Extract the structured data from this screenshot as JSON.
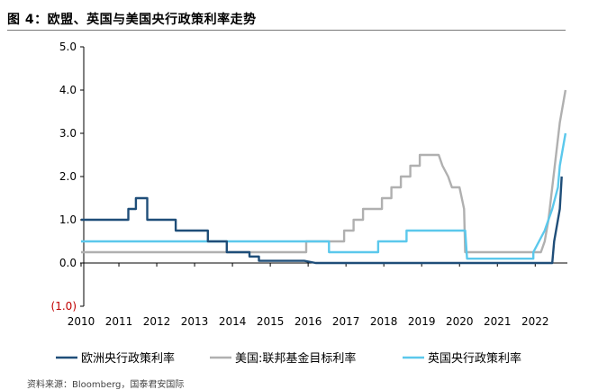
{
  "figure": {
    "title": "图 4：欧盟、英国与美国央行政策利率走势",
    "source_note": "资料来源：Bloomberg，国泰君安国际"
  },
  "chart_data": {
    "type": "line",
    "title": "",
    "xlabel": "",
    "ylabel": "",
    "xlim": [
      2010,
      2022.85
    ],
    "ylim": [
      -1.0,
      5.0
    ],
    "x_ticks": [
      2010,
      2011,
      2012,
      2013,
      2014,
      2015,
      2016,
      2017,
      2018,
      2019,
      2020,
      2021,
      2022
    ],
    "x_tick_labels": [
      "2010",
      "2011",
      "2012",
      "2013",
      "2014",
      "2015",
      "2016",
      "2017",
      "2018",
      "2019",
      "2020",
      "2021",
      "2022"
    ],
    "y_ticks": [
      -1.0,
      0.0,
      1.0,
      2.0,
      3.0,
      4.0,
      5.0
    ],
    "y_tick_labels": [
      "(1.0)",
      "0.0",
      "1.0",
      "2.0",
      "3.0",
      "4.0",
      "5.0"
    ],
    "y_tick_label_colors": {
      "(1.0)": "#c00000"
    },
    "grid": false,
    "legend_position": "bottom",
    "series": [
      {
        "name": "欧洲央行政策利率",
        "color": "#1f4e79",
        "points": [
          [
            2010.0,
            1.0
          ],
          [
            2011.0,
            1.0
          ],
          [
            2011.25,
            1.0
          ],
          [
            2011.25,
            1.25
          ],
          [
            2011.45,
            1.25
          ],
          [
            2011.45,
            1.5
          ],
          [
            2011.75,
            1.5
          ],
          [
            2011.75,
            1.0
          ],
          [
            2012.25,
            1.0
          ],
          [
            2012.5,
            1.0
          ],
          [
            2012.5,
            0.75
          ],
          [
            2013.1,
            0.75
          ],
          [
            2013.35,
            0.75
          ],
          [
            2013.35,
            0.5
          ],
          [
            2013.85,
            0.5
          ],
          [
            2013.85,
            0.25
          ],
          [
            2014.45,
            0.25
          ],
          [
            2014.45,
            0.15
          ],
          [
            2014.7,
            0.15
          ],
          [
            2014.7,
            0.05
          ],
          [
            2015.9,
            0.05
          ],
          [
            2016.2,
            0.0
          ],
          [
            2022.45,
            0.0
          ],
          [
            2022.5,
            0.5
          ],
          [
            2022.65,
            1.25
          ],
          [
            2022.7,
            2.0
          ]
        ]
      },
      {
        "name": "美国:联邦基金目标利率",
        "color": "#b0b0b0",
        "points": [
          [
            2010.0,
            0.25
          ],
          [
            2015.95,
            0.25
          ],
          [
            2015.95,
            0.5
          ],
          [
            2016.95,
            0.5
          ],
          [
            2016.95,
            0.75
          ],
          [
            2017.2,
            0.75
          ],
          [
            2017.2,
            1.0
          ],
          [
            2017.45,
            1.0
          ],
          [
            2017.45,
            1.25
          ],
          [
            2017.95,
            1.25
          ],
          [
            2017.95,
            1.5
          ],
          [
            2018.2,
            1.5
          ],
          [
            2018.2,
            1.75
          ],
          [
            2018.45,
            1.75
          ],
          [
            2018.45,
            2.0
          ],
          [
            2018.7,
            2.0
          ],
          [
            2018.7,
            2.25
          ],
          [
            2018.95,
            2.25
          ],
          [
            2018.95,
            2.5
          ],
          [
            2019.45,
            2.5
          ],
          [
            2019.55,
            2.25
          ],
          [
            2019.7,
            2.0
          ],
          [
            2019.8,
            1.75
          ],
          [
            2020.0,
            1.75
          ],
          [
            2020.12,
            1.25
          ],
          [
            2020.15,
            0.25
          ],
          [
            2022.15,
            0.25
          ],
          [
            2022.25,
            0.5
          ],
          [
            2022.35,
            1.0
          ],
          [
            2022.45,
            1.75
          ],
          [
            2022.55,
            2.5
          ],
          [
            2022.65,
            3.25
          ],
          [
            2022.8,
            4.0
          ]
        ]
      },
      {
        "name": "英国央行政策利率",
        "color": "#5bc8ec",
        "points": [
          [
            2010.0,
            0.5
          ],
          [
            2016.55,
            0.5
          ],
          [
            2016.55,
            0.25
          ],
          [
            2017.85,
            0.25
          ],
          [
            2017.85,
            0.5
          ],
          [
            2018.6,
            0.5
          ],
          [
            2018.6,
            0.75
          ],
          [
            2020.15,
            0.75
          ],
          [
            2020.2,
            0.1
          ],
          [
            2021.95,
            0.1
          ],
          [
            2021.95,
            0.25
          ],
          [
            2022.1,
            0.5
          ],
          [
            2022.25,
            0.75
          ],
          [
            2022.35,
            1.0
          ],
          [
            2022.45,
            1.25
          ],
          [
            2022.6,
            1.75
          ],
          [
            2022.65,
            2.25
          ],
          [
            2022.8,
            3.0
          ]
        ]
      }
    ]
  }
}
